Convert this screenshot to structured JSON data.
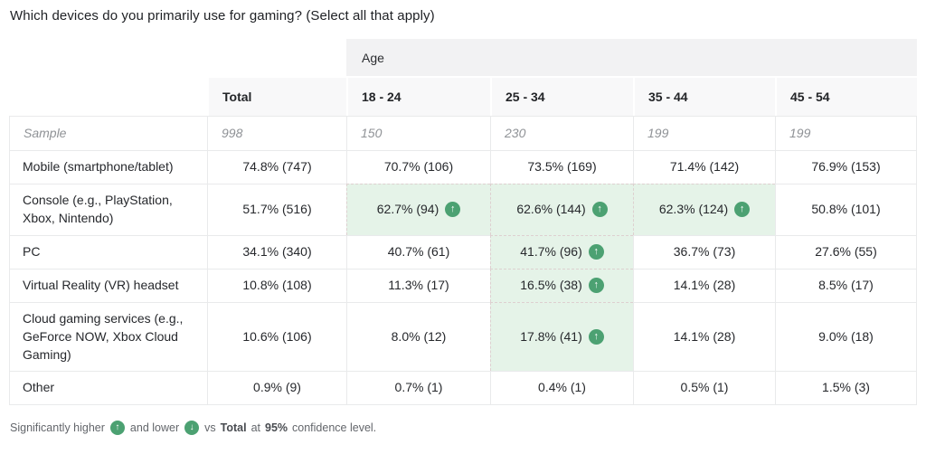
{
  "title": "Which devices do you primarily use for gaming? (Select all that apply)",
  "colors": {
    "significance_green": "#4ca172",
    "highlight_bg": "#e5f3e8",
    "group_header_bg": "#f2f2f3",
    "header_bg": "#f8f8f9"
  },
  "table": {
    "group_header": "Age",
    "columns": [
      "Total",
      "18 - 24",
      "25 - 34",
      "35 - 44",
      "45 - 54"
    ],
    "sample": {
      "label": "Sample",
      "values": [
        "998",
        "150",
        "230",
        "199",
        "199"
      ]
    },
    "rows": [
      {
        "label": "Mobile (smartphone/tablet)",
        "cells": [
          {
            "text": "74.8% (747)"
          },
          {
            "text": "70.7% (106)"
          },
          {
            "text": "73.5% (169)"
          },
          {
            "text": "71.4% (142)"
          },
          {
            "text": "76.9% (153)"
          }
        ]
      },
      {
        "label": "Console (e.g., PlayStation, Xbox, Nintendo)",
        "cells": [
          {
            "text": "51.7% (516)"
          },
          {
            "text": "62.7% (94)",
            "highlight": true,
            "arrow": "up"
          },
          {
            "text": "62.6% (144)",
            "highlight": true,
            "arrow": "up"
          },
          {
            "text": "62.3% (124)",
            "highlight": true,
            "arrow": "up"
          },
          {
            "text": "50.8% (101)"
          }
        ]
      },
      {
        "label": "PC",
        "cells": [
          {
            "text": "34.1% (340)"
          },
          {
            "text": "40.7% (61)"
          },
          {
            "text": "41.7% (96)",
            "highlight": true,
            "arrow": "up"
          },
          {
            "text": "36.7% (73)"
          },
          {
            "text": "27.6% (55)"
          }
        ]
      },
      {
        "label": "Virtual Reality (VR) headset",
        "cells": [
          {
            "text": "10.8% (108)"
          },
          {
            "text": "11.3% (17)"
          },
          {
            "text": "16.5% (38)",
            "highlight": true,
            "arrow": "up"
          },
          {
            "text": "14.1% (28)"
          },
          {
            "text": "8.5% (17)"
          }
        ]
      },
      {
        "label": "Cloud gaming services (e.g., GeForce NOW, Xbox Cloud Gaming)",
        "cells": [
          {
            "text": "10.6% (106)"
          },
          {
            "text": "8.0% (12)"
          },
          {
            "text": "17.8% (41)",
            "highlight": true,
            "arrow": "up"
          },
          {
            "text": "14.1% (28)"
          },
          {
            "text": "9.0% (18)"
          }
        ]
      },
      {
        "label": "Other",
        "cells": [
          {
            "text": "0.9% (9)"
          },
          {
            "text": "0.7% (1)"
          },
          {
            "text": "0.4% (1)"
          },
          {
            "text": "0.5% (1)"
          },
          {
            "text": "1.5% (3)"
          }
        ]
      }
    ]
  },
  "footer": {
    "higher_text": "Significantly higher",
    "lower_text": "and lower",
    "vs_text": "vs",
    "total_label": "Total",
    "at_text": "at",
    "confidence_value": "95%",
    "suffix": "confidence level."
  },
  "chart_data": {
    "type": "table",
    "title": "Which devices do you primarily use for gaming? (Select all that apply)",
    "columns": [
      "Total",
      "18 - 24",
      "25 - 34",
      "35 - 44",
      "45 - 54"
    ],
    "sample_sizes": [
      998,
      150,
      230,
      199,
      199
    ],
    "rows": [
      {
        "label": "Mobile (smartphone/tablet)",
        "pct": [
          74.8,
          70.7,
          73.5,
          71.4,
          76.9
        ],
        "n": [
          747,
          106,
          169,
          142,
          153
        ],
        "significantly_higher_cols": []
      },
      {
        "label": "Console (e.g., PlayStation, Xbox, Nintendo)",
        "pct": [
          51.7,
          62.7,
          62.6,
          62.3,
          50.8
        ],
        "n": [
          516,
          94,
          144,
          124,
          101
        ],
        "significantly_higher_cols": [
          "18 - 24",
          "25 - 34",
          "35 - 44"
        ]
      },
      {
        "label": "PC",
        "pct": [
          34.1,
          40.7,
          41.7,
          36.7,
          27.6
        ],
        "n": [
          340,
          61,
          96,
          73,
          55
        ],
        "significantly_higher_cols": [
          "25 - 34"
        ]
      },
      {
        "label": "Virtual Reality (VR) headset",
        "pct": [
          10.8,
          11.3,
          16.5,
          14.1,
          8.5
        ],
        "n": [
          108,
          17,
          38,
          28,
          17
        ],
        "significantly_higher_cols": [
          "25 - 34"
        ]
      },
      {
        "label": "Cloud gaming services (e.g., GeForce NOW, Xbox Cloud Gaming)",
        "pct": [
          10.6,
          8.0,
          17.8,
          14.1,
          9.0
        ],
        "n": [
          106,
          12,
          41,
          28,
          18
        ],
        "significantly_higher_cols": [
          "25 - 34"
        ]
      },
      {
        "label": "Other",
        "pct": [
          0.9,
          0.7,
          0.4,
          0.5,
          1.5
        ],
        "n": [
          9,
          1,
          1,
          1,
          3
        ],
        "significantly_higher_cols": []
      }
    ],
    "note": "Significantly higher and lower vs Total at 95% confidence level."
  }
}
